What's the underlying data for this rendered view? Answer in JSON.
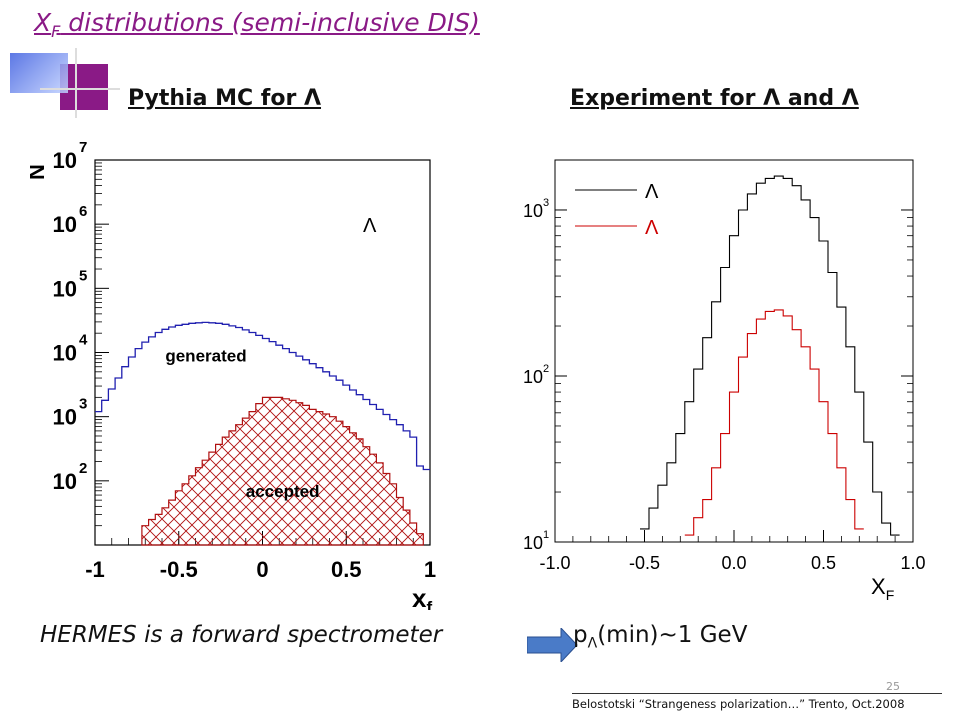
{
  "slide": {
    "title_main": "X",
    "title_sub": "F",
    "title_rest": " distributions  (semi-inclusive  DIS)",
    "page_number": "25",
    "footer": "Belostotski  “Strangeness polarization…” Trento, Oct.2008",
    "bottom_note": "HERMES is a forward spectrometer",
    "pmin_p": "p",
    "pmin_sub": "Λ",
    "pmin_rest": "(min)~1 GeV",
    "colors": {
      "title": "#8a1a86",
      "arrow": "#4a7bc8",
      "mc_generated": "#2020b0",
      "mc_accepted": "#b01010",
      "exp_lambda": "#000000",
      "exp_antilambda": "#cc0000"
    }
  },
  "left_panel": {
    "title": "Pythia MC for Λ"
  },
  "right_panel": {
    "title": "Experiment for Λ and Λ"
  },
  "chart_data": [
    {
      "type": "line",
      "title": "Pythia MC for Λ",
      "xlabel": "x_f",
      "ylabel": "N",
      "yscale": "log",
      "xlim": [
        -1,
        1
      ],
      "ylim": [
        10,
        10000000
      ],
      "x_ticks": [
        "-1",
        "-0.5",
        "0",
        "0.5",
        "1"
      ],
      "y_ticks": [
        {
          "base": "10",
          "exp": "2"
        },
        {
          "base": "10",
          "exp": "3"
        },
        {
          "base": "10",
          "exp": "4"
        },
        {
          "base": "10",
          "exp": "5"
        },
        {
          "base": "10",
          "exp": "6"
        },
        {
          "base": "10",
          "exp": "7"
        }
      ],
      "annotations": {
        "particle": "Λ",
        "generated": "generated",
        "accepted": "accepted"
      },
      "x": [
        -0.98,
        -0.94,
        -0.9,
        -0.86,
        -0.82,
        -0.78,
        -0.74,
        -0.7,
        -0.66,
        -0.62,
        -0.58,
        -0.54,
        -0.5,
        -0.46,
        -0.42,
        -0.38,
        -0.34,
        -0.3,
        -0.26,
        -0.22,
        -0.18,
        -0.14,
        -0.1,
        -0.06,
        -0.02,
        0.02,
        0.06,
        0.1,
        0.14,
        0.18,
        0.22,
        0.26,
        0.3,
        0.34,
        0.38,
        0.42,
        0.46,
        0.5,
        0.54,
        0.58,
        0.62,
        0.66,
        0.7,
        0.74,
        0.78,
        0.82,
        0.86,
        0.9,
        0.94,
        0.98
      ],
      "series": [
        {
          "name": "generated",
          "values": [
            1200,
            1800,
            2700,
            4000,
            6000,
            8500,
            11500,
            14500,
            17500,
            20500,
            23000,
            25000,
            26500,
            27500,
            28500,
            29000,
            29500,
            29000,
            28500,
            27500,
            26000,
            24500,
            22500,
            20500,
            18500,
            16500,
            14800,
            13000,
            11500,
            10000,
            8800,
            7700,
            6700,
            5800,
            5000,
            4300,
            3700,
            3100,
            2600,
            2200,
            1850,
            1550,
            1300,
            1080,
            900,
            750,
            600,
            480,
            170,
            150
          ]
        },
        {
          "name": "accepted",
          "values": [
            null,
            null,
            null,
            null,
            null,
            null,
            null,
            20,
            25,
            30,
            38,
            50,
            70,
            90,
            120,
            160,
            210,
            280,
            370,
            480,
            600,
            750,
            950,
            1200,
            1600,
            2000,
            2000,
            2000,
            1900,
            1800,
            1650,
            1500,
            1300,
            1200,
            1100,
            1000,
            850,
            700,
            560,
            450,
            340,
            260,
            190,
            130,
            90,
            55,
            35,
            22,
            15,
            null
          ]
        }
      ]
    },
    {
      "type": "line",
      "title": "Experiment for Λ and Λ",
      "xlabel": "X_F",
      "ylabel": "",
      "yscale": "log",
      "xlim": [
        -1.0,
        1.0
      ],
      "ylim": [
        10,
        2000
      ],
      "x_ticks": [
        "-1.0",
        "-0.5",
        "0.0",
        "0.5",
        "1.0"
      ],
      "y_ticks": [
        {
          "base": "10",
          "exp": "1"
        },
        {
          "base": "10",
          "exp": "2"
        },
        {
          "base": "10",
          "exp": "3"
        }
      ],
      "legend_position": "top-left",
      "x": [
        -0.5,
        -0.45,
        -0.4,
        -0.35,
        -0.3,
        -0.25,
        -0.2,
        -0.15,
        -0.1,
        -0.05,
        0.0,
        0.05,
        0.1,
        0.15,
        0.2,
        0.25,
        0.3,
        0.35,
        0.4,
        0.45,
        0.5,
        0.55,
        0.6,
        0.65,
        0.7,
        0.75,
        0.8,
        0.85,
        0.9
      ],
      "series": [
        {
          "name": "Λ",
          "values": [
            12,
            16,
            22,
            30,
            45,
            70,
            110,
            170,
            280,
            450,
            700,
            1000,
            1250,
            1450,
            1550,
            1600,
            1550,
            1400,
            1150,
            900,
            650,
            420,
            260,
            150,
            80,
            40,
            20,
            13,
            11
          ]
        },
        {
          "name": "Λ",
          "values": [
            null,
            null,
            null,
            null,
            null,
            11,
            14,
            18,
            28,
            45,
            80,
            130,
            180,
            220,
            245,
            250,
            230,
            190,
            150,
            110,
            70,
            45,
            28,
            18,
            12,
            null,
            null,
            null,
            null
          ]
        }
      ]
    }
  ]
}
